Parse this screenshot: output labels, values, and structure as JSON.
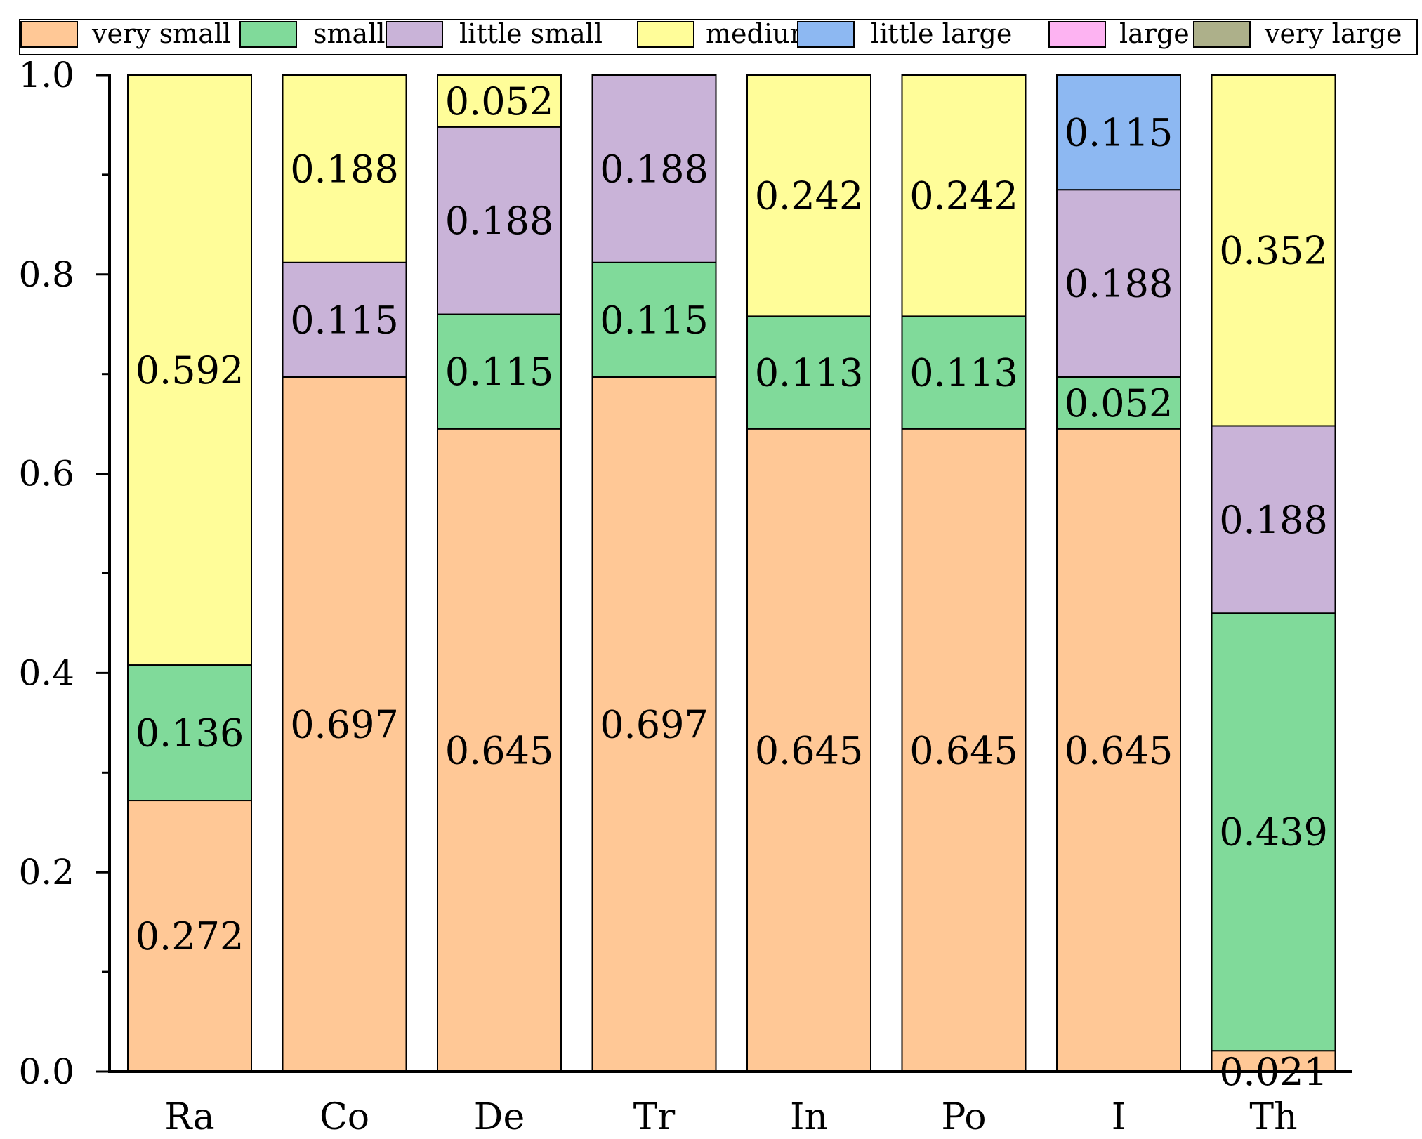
{
  "chart_data": {
    "type": "bar",
    "stacked": true,
    "title": "",
    "xlabel": "",
    "ylabel": "",
    "ylim": [
      0.0,
      1.0
    ],
    "yticks": [
      "0.0",
      "0.2",
      "0.4",
      "0.6",
      "0.8",
      "1.0"
    ],
    "grid": false,
    "legend_position": "top",
    "categories": [
      "Ra",
      "Co",
      "De",
      "Tr",
      "In",
      "Po",
      "I",
      "Th"
    ],
    "series": [
      {
        "name": "very small",
        "color": "#FFC896",
        "values": [
          0.272,
          0.697,
          0.645,
          0.697,
          0.645,
          0.645,
          0.645,
          0.021
        ],
        "labels": [
          "0.272",
          "0.697",
          "0.645",
          "0.697",
          "0.645",
          "0.645",
          "0.645",
          "0.021"
        ]
      },
      {
        "name": "small",
        "color": "#80DA9A",
        "values": [
          0.136,
          0,
          0.115,
          0.115,
          0.113,
          0.113,
          0.052,
          0.439
        ],
        "labels": [
          "0.136",
          "",
          "0.115",
          "0.115",
          "0.113",
          "0.113",
          "0.052",
          "0.439"
        ]
      },
      {
        "name": "little small",
        "color": "#C9B3D8",
        "values": [
          0,
          0.115,
          0.188,
          0.188,
          0,
          0,
          0.188,
          0.188
        ],
        "labels": [
          "",
          "0.115",
          "0.188",
          "0.188",
          "",
          "",
          "0.188",
          "0.188"
        ]
      },
      {
        "name": "medium",
        "color": "#FFFD99",
        "values": [
          0.592,
          0.188,
          0.052,
          0,
          0.242,
          0.242,
          0,
          0.352
        ],
        "labels": [
          "0.592",
          "0.188",
          "0.052",
          "",
          "0.242",
          "0.242",
          "",
          "0.352"
        ]
      },
      {
        "name": "little large",
        "color": "#8DB8F2",
        "values": [
          0,
          0,
          0,
          0,
          0,
          0,
          0.115,
          0
        ],
        "labels": [
          "",
          "",
          "",
          "",
          "",
          "",
          "0.115",
          ""
        ]
      },
      {
        "name": "large",
        "color": "#FDB3F2",
        "values": [
          0,
          0,
          0,
          0,
          0,
          0,
          0,
          0
        ],
        "labels": [
          "",
          "",
          "",
          "",
          "",
          "",
          "",
          ""
        ]
      },
      {
        "name": "very large",
        "color": "#ADB08A",
        "values": [
          0,
          0,
          0,
          0,
          0,
          0,
          0,
          0
        ],
        "labels": [
          "",
          "",
          "",
          "",
          "",
          "",
          "",
          ""
        ]
      }
    ]
  }
}
